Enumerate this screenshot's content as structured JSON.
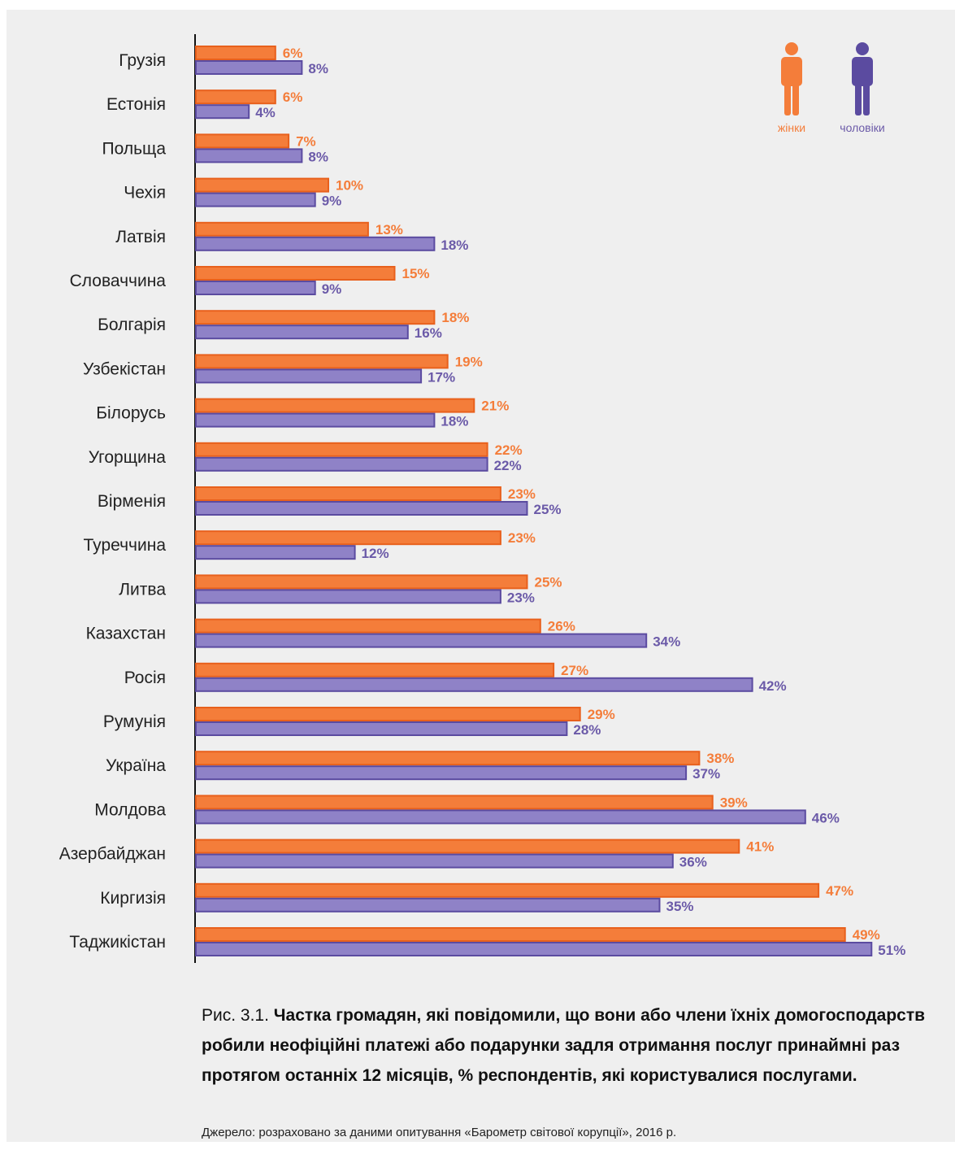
{
  "chart_data": {
    "type": "bar",
    "orientation": "horizontal",
    "categories": [
      "Грузія",
      "Естонія",
      "Польща",
      "Чехія",
      "Латвія",
      "Словаччина",
      "Болгарія",
      "Узбекістан",
      "Білорусь",
      "Угорщина",
      "Вірменія",
      "Туреччина",
      "Литва",
      "Казахстан",
      "Росія",
      "Румунія",
      "Україна",
      "Молдова",
      "Азербайджан",
      "Киргизія",
      "Таджикістан"
    ],
    "series": [
      {
        "name": "жінки",
        "color": "#f47d3a",
        "values": [
          6,
          6,
          7,
          10,
          13,
          15,
          18,
          19,
          21,
          22,
          23,
          23,
          25,
          26,
          27,
          29,
          38,
          39,
          41,
          47,
          49
        ]
      },
      {
        "name": "чоловіки",
        "color": "#8f82c7",
        "values": [
          8,
          4,
          8,
          9,
          18,
          9,
          16,
          17,
          18,
          22,
          25,
          12,
          23,
          34,
          42,
          28,
          37,
          46,
          36,
          35,
          51
        ]
      }
    ],
    "value_suffix": "%",
    "xlim": [
      0,
      51
    ],
    "legend_position": "top-right",
    "grid": false
  },
  "colors": {
    "women_fill": "#f47d3a",
    "women_stroke": "#e8601c",
    "women_text": "#f47d3a",
    "men_fill": "#8f82c7",
    "men_stroke": "#5b4ba0",
    "men_text": "#6b5aa8",
    "background": "#efefef"
  },
  "legend": {
    "women_label": "жінки",
    "men_label": "чоловіки",
    "women_icon": "woman-figure-icon",
    "men_icon": "man-figure-icon"
  },
  "caption": {
    "figure_label": "Рис. 3.1.",
    "title": "Частка громадян, які повідомили, що вони або члени їхніх домогосподарств робили неофіційні платежі або подарунки задля отримання послуг принаймні раз протягом останніх 12 місяців, % респондентів, які користувалися послугами.",
    "source": "Джерело: розраховано за даними опитування «Барометр світової корупції», 2016 р."
  }
}
